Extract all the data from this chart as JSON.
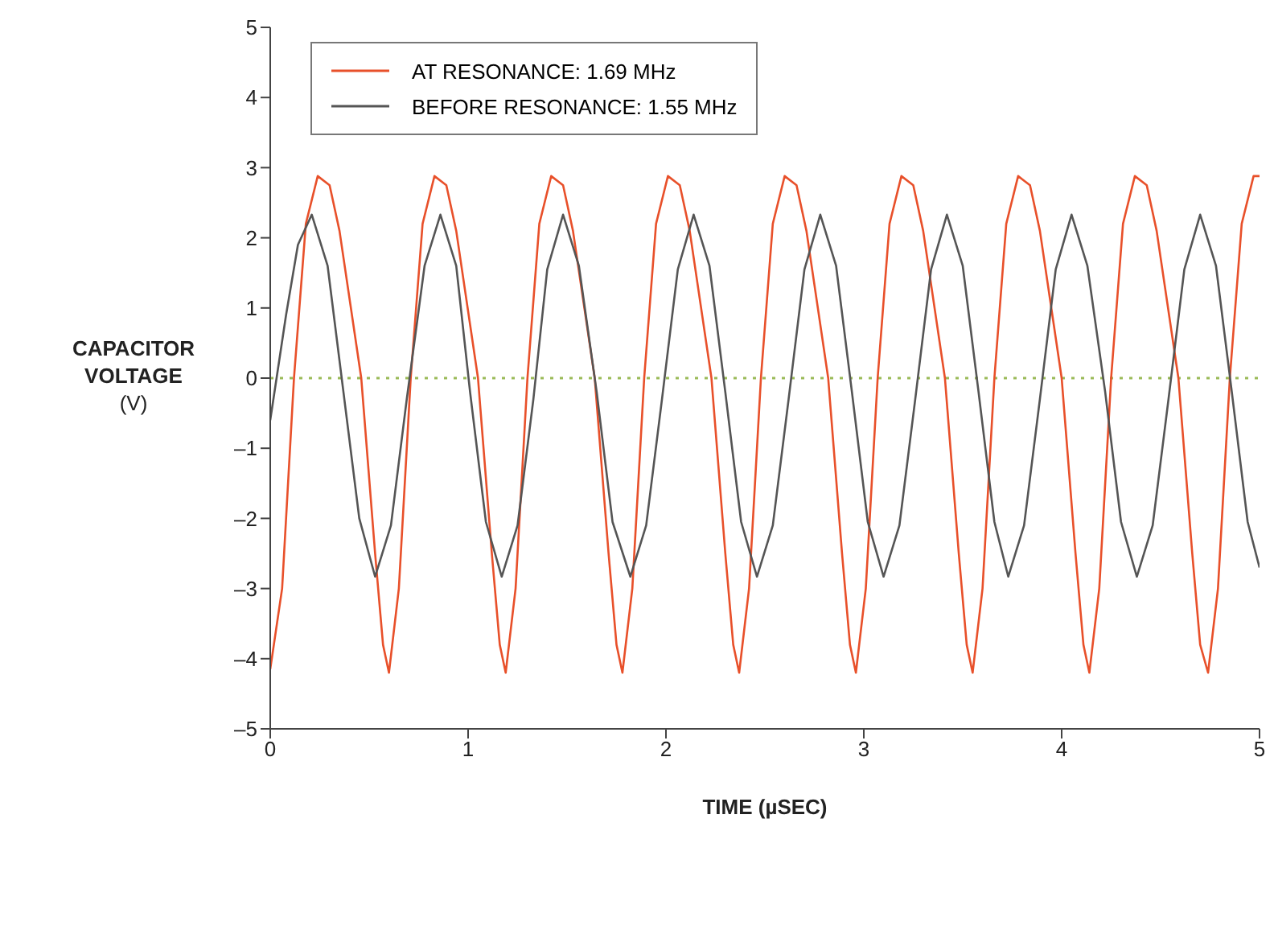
{
  "chart_data": {
    "type": "line",
    "xlabel": "TIME (µSEC)",
    "ylabel": "CAPACITOR VOLTAGE (V)",
    "xlim": [
      0,
      5
    ],
    "xticks": [
      0,
      1,
      2,
      3,
      4,
      5
    ],
    "ylim": [
      -5,
      5
    ],
    "yticks": [
      {
        "value": -5,
        "label": "–5"
      },
      {
        "value": -4,
        "label": "–4"
      },
      {
        "value": -3,
        "label": "–3"
      },
      {
        "value": -2,
        "label": "–2"
      },
      {
        "value": -1,
        "label": "–1"
      },
      0,
      1,
      2,
      3,
      4,
      5
    ],
    "legend": "top left",
    "marker": "none",
    "line_style": "solid",
    "ref_lines": [
      {
        "axis": "y",
        "value": 0,
        "color": "#9bbb59",
        "line_style": "dotted"
      }
    ],
    "series": [
      {
        "name": "AT RESONANCE: 1.69 MHz",
        "color": "#e8502a",
        "x": [
          0,
          0.06,
          0.12,
          0.18,
          0.24,
          0.3,
          0.35,
          0.46,
          0.53,
          0.57,
          0.6,
          0.65,
          0.71,
          0.77,
          0.83,
          0.89,
          0.94,
          1.05,
          1.12,
          1.16,
          1.19,
          1.24,
          1.3,
          1.36,
          1.42,
          1.48,
          1.53,
          1.64,
          1.71,
          1.75,
          1.78,
          1.83,
          1.89,
          1.95,
          2.01,
          2.07,
          2.12,
          2.23,
          2.3,
          2.34,
          2.37,
          2.42,
          2.48,
          2.54,
          2.6,
          2.66,
          2.71,
          2.82,
          2.89,
          2.93,
          2.96,
          3.01,
          3.07,
          3.13,
          3.19,
          3.25,
          3.3,
          3.41,
          3.48,
          3.52,
          3.55,
          3.6,
          3.66,
          3.72,
          3.78,
          3.84,
          3.89,
          4,
          4.07,
          4.11,
          4.14,
          4.19,
          4.25,
          4.31,
          4.37,
          4.43,
          4.48,
          4.59,
          4.66,
          4.7,
          4.74,
          4.79,
          4.85,
          4.91,
          4.97,
          5
        ],
        "values": [
          -4.15,
          -3,
          0,
          2.2,
          2.88,
          2.75,
          2.1,
          0,
          -2.5,
          -3.8,
          -4.2,
          -3,
          0,
          2.2,
          2.88,
          2.75,
          2.1,
          0,
          -2.5,
          -3.8,
          -4.2,
          -3,
          0,
          2.2,
          2.88,
          2.75,
          2.1,
          0,
          -2.5,
          -3.8,
          -4.2,
          -3,
          0,
          2.2,
          2.88,
          2.75,
          2.1,
          0,
          -2.5,
          -3.8,
          -4.2,
          -3,
          0,
          2.2,
          2.88,
          2.75,
          2.1,
          0,
          -2.5,
          -3.8,
          -4.2,
          -3,
          0,
          2.2,
          2.88,
          2.75,
          2.1,
          0,
          -2.5,
          -3.8,
          -4.2,
          -3,
          0,
          2.2,
          2.88,
          2.75,
          2.1,
          0,
          -2.5,
          -3.8,
          -4.2,
          -3,
          0,
          2.2,
          2.88,
          2.75,
          2.1,
          0,
          -2.5,
          -3.8,
          -4.2,
          -3,
          0,
          2.2,
          2.88,
          2.88
        ]
      },
      {
        "name": "BEFORE RESONANCE: 1.55 MHz",
        "color": "#555555",
        "x": [
          0,
          0.08,
          0.14,
          0.21,
          0.29,
          0.37,
          0.45,
          0.53,
          0.61,
          0.69,
          0.78,
          0.86,
          0.94,
          1.01,
          1.09,
          1.17,
          1.25,
          1.33,
          1.4,
          1.48,
          1.56,
          1.65,
          1.73,
          1.82,
          1.9,
          1.98,
          2.06,
          2.14,
          2.22,
          2.3,
          2.38,
          2.46,
          2.54,
          2.62,
          2.7,
          2.78,
          2.86,
          2.94,
          3.02,
          3.1,
          3.18,
          3.26,
          3.34,
          3.42,
          3.5,
          3.58,
          3.66,
          3.73,
          3.81,
          3.89,
          3.97,
          4.05,
          4.13,
          4.22,
          4.3,
          4.38,
          4.46,
          4.54,
          4.62,
          4.7,
          4.78,
          4.86,
          4.94,
          5
        ],
        "values": [
          -0.6,
          0.9,
          1.9,
          2.33,
          1.6,
          -0.2,
          -2,
          -2.83,
          -2.1,
          -0.3,
          1.6,
          2.33,
          1.6,
          -0.2,
          -2.05,
          -2.83,
          -2.1,
          -0.3,
          1.55,
          2.33,
          1.6,
          -0.2,
          -2.05,
          -2.83,
          -2.1,
          -0.3,
          1.55,
          2.33,
          1.6,
          -0.2,
          -2.05,
          -2.83,
          -2.1,
          -0.3,
          1.55,
          2.33,
          1.6,
          -0.2,
          -2.05,
          -2.83,
          -2.1,
          -0.3,
          1.55,
          2.33,
          1.6,
          -0.2,
          -2.05,
          -2.83,
          -2.1,
          -0.3,
          1.55,
          2.33,
          1.6,
          -0.2,
          -2.05,
          -2.83,
          -2.1,
          -0.3,
          1.55,
          2.33,
          1.6,
          -0.2,
          -2.05,
          -2.7
        ]
      }
    ]
  }
}
